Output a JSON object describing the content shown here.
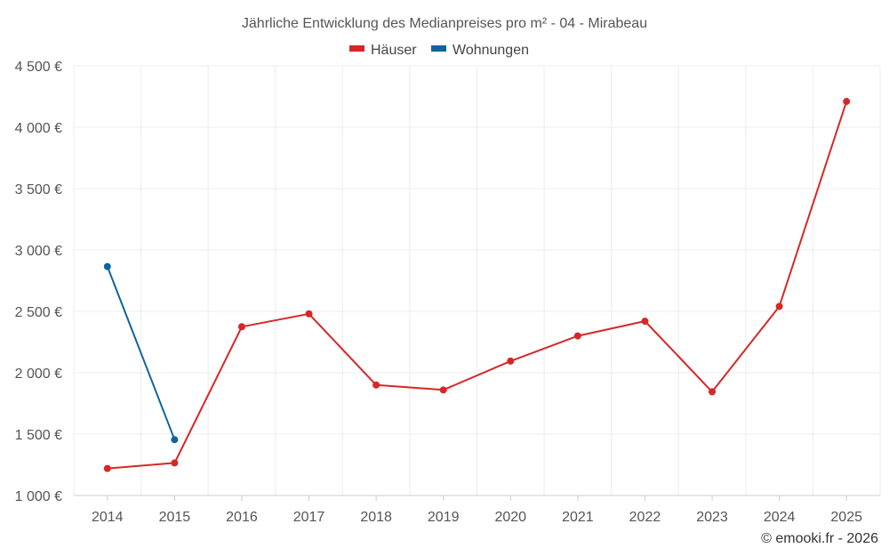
{
  "chart_data": {
    "type": "line",
    "title": "Jährliche Entwicklung des Medianpreises pro m² - 04 - Mirabeau",
    "categories": [
      "2014",
      "2015",
      "2016",
      "2017",
      "2018",
      "2019",
      "2020",
      "2021",
      "2022",
      "2023",
      "2024",
      "2025"
    ],
    "series": [
      {
        "name": "Häuser",
        "color": "#d62728",
        "values": [
          1220,
          1265,
          2375,
          2480,
          1900,
          1860,
          2095,
          2300,
          2420,
          1845,
          2540,
          4210
        ]
      },
      {
        "name": "Wohnungen",
        "color": "#0f64a0",
        "values": [
          2865,
          1455,
          null,
          null,
          null,
          null,
          null,
          null,
          null,
          null,
          null,
          null
        ]
      }
    ],
    "ylim": [
      1000,
      4500
    ],
    "yticks": [
      1000,
      1500,
      2000,
      2500,
      3000,
      3500,
      4000,
      4500
    ],
    "ytick_labels": [
      "1 000 €",
      "1 500 €",
      "2 000 €",
      "2 500 €",
      "3 000 €",
      "3 500 €",
      "4 000 €",
      "4 500 €"
    ],
    "xlabel": "",
    "ylabel": "",
    "grid": true,
    "legend_position": "top-center"
  },
  "credit": "© emooki.fr - 2026"
}
